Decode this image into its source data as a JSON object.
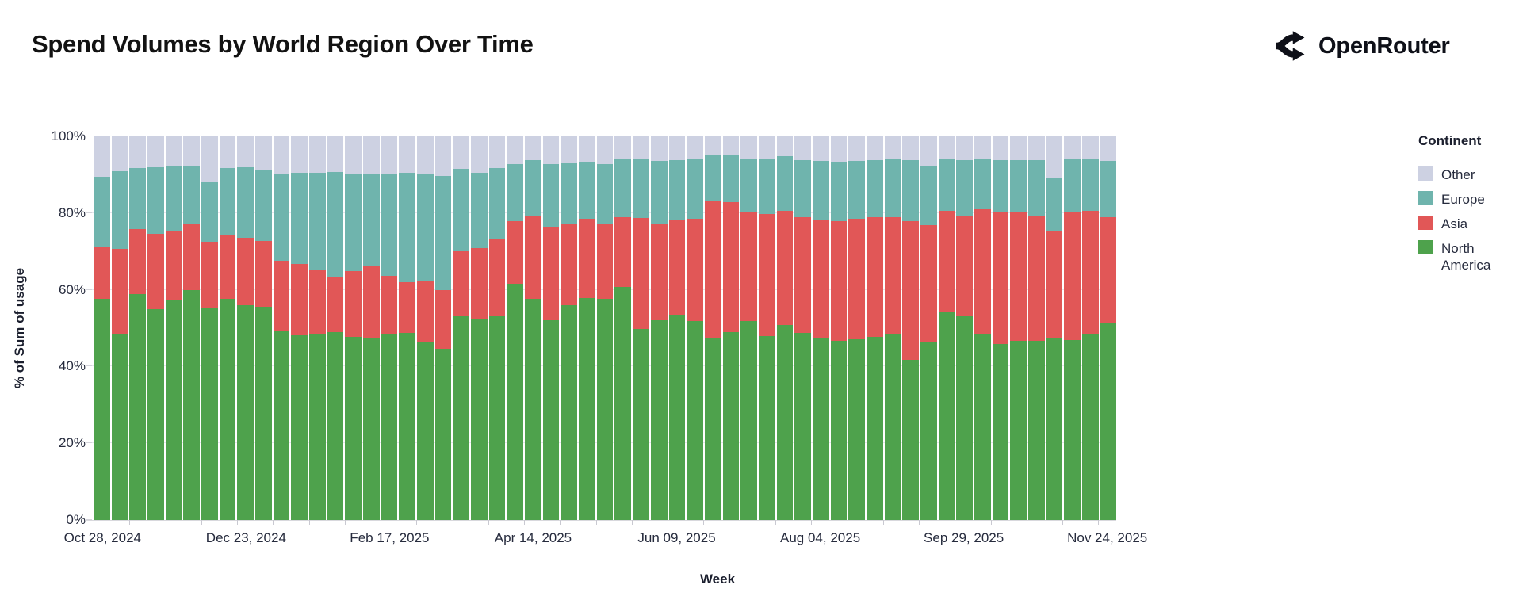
{
  "page": {
    "title": "Spend Volumes by World Region Over Time",
    "brand": "OpenRouter"
  },
  "chart_data": {
    "type": "bar",
    "stacked": true,
    "normalized_percent": true,
    "title": "Spend Volumes by World Region Over Time",
    "xlabel": "Week",
    "ylabel": "% of Sum of usage",
    "ylim": [
      0,
      100
    ],
    "grid": "horizontal",
    "bar_count": 57,
    "yticks": [
      {
        "label": "0%",
        "value": 0
      },
      {
        "label": "20%",
        "value": 20
      },
      {
        "label": "40%",
        "value": 40
      },
      {
        "label": "60%",
        "value": 60
      },
      {
        "label": "80%",
        "value": 80
      },
      {
        "label": "100%",
        "value": 100
      }
    ],
    "x_axis_labels": [
      "Oct 28, 2024",
      "Dec 23, 2024",
      "Feb 17, 2025",
      "Apr 14, 2025",
      "Jun 09, 2025",
      "Aug 04, 2025",
      "Sep 29, 2025",
      "Nov 24, 2025"
    ],
    "x_label_every_n_bars": 8,
    "x_minor_tick_every_n_bars": 2,
    "legend_title": "Continent",
    "legend_position": "right",
    "legend_order_top_to_bottom": [
      "Other",
      "Europe",
      "Asia",
      "North America"
    ],
    "series": [
      {
        "name": "North America",
        "color": "#4ea24c",
        "values": [
          57.7,
          48.3,
          58.8,
          55.0,
          57.4,
          59.9,
          55.2,
          57.6,
          55.9,
          55.6,
          49.4,
          48.2,
          48.6,
          48.9,
          47.8,
          47.4,
          48.3,
          48.8,
          46.4,
          44.7,
          53.2,
          52.5,
          53.2,
          61.5,
          57.7,
          52.0,
          56.0,
          57.8,
          57.7,
          60.8,
          49.7,
          52.0,
          53.5,
          51.8,
          47.4,
          49.0,
          51.8,
          47.9,
          50.9,
          48.7,
          47.5,
          46.8,
          47.2,
          47.8,
          48.6,
          41.7,
          46.3,
          54.1,
          53.2,
          48.3,
          45.9,
          46.7,
          46.8,
          47.5,
          47.0,
          48.5,
          51.2
        ]
      },
      {
        "name": "Asia",
        "color": "#e15757",
        "values": [
          13.3,
          22.3,
          17.0,
          19.6,
          17.8,
          17.3,
          17.4,
          16.8,
          17.6,
          17.1,
          18.1,
          18.6,
          16.6,
          14.6,
          17.0,
          19.0,
          15.4,
          13.1,
          15.9,
          15.2,
          16.9,
          18.4,
          20.0,
          16.3,
          21.5,
          24.4,
          21.1,
          20.7,
          19.3,
          18.2,
          29.0,
          25.0,
          24.6,
          26.7,
          35.6,
          33.8,
          28.3,
          31.8,
          29.7,
          30.2,
          30.8,
          31.1,
          31.3,
          31.1,
          30.4,
          36.1,
          30.5,
          26.5,
          26.2,
          32.7,
          34.2,
          33.4,
          32.4,
          27.9,
          33.1,
          32.0,
          27.8
        ]
      },
      {
        "name": "Europe",
        "color": "#6fb4ad",
        "values": [
          18.5,
          20.4,
          15.9,
          17.3,
          16.9,
          15.0,
          15.7,
          17.4,
          18.5,
          18.6,
          22.5,
          23.8,
          25.2,
          27.2,
          25.5,
          23.8,
          26.4,
          28.5,
          27.8,
          29.8,
          21.5,
          19.5,
          18.6,
          15.0,
          14.7,
          16.4,
          15.9,
          14.9,
          15.7,
          15.2,
          15.5,
          16.7,
          15.8,
          15.7,
          12.2,
          12.4,
          14.1,
          14.4,
          14.2,
          15.0,
          15.3,
          15.5,
          15.2,
          15.0,
          15.1,
          16.1,
          15.5,
          13.5,
          14.5,
          13.3,
          13.8,
          13.8,
          14.6,
          13.6,
          13.9,
          13.5,
          14.7
        ]
      },
      {
        "name": "Other",
        "color": "#cdd1e2",
        "values": [
          10.5,
          9.0,
          8.3,
          8.1,
          7.9,
          7.8,
          11.7,
          8.2,
          8.0,
          8.7,
          10.0,
          9.4,
          9.6,
          9.3,
          9.7,
          9.8,
          9.9,
          9.6,
          9.9,
          10.3,
          8.4,
          9.6,
          8.2,
          7.2,
          6.1,
          7.2,
          7.0,
          6.6,
          7.3,
          5.8,
          5.8,
          6.3,
          6.1,
          5.8,
          4.8,
          4.8,
          5.8,
          5.9,
          5.2,
          6.1,
          6.4,
          6.6,
          6.3,
          6.1,
          5.9,
          6.1,
          7.7,
          5.9,
          6.1,
          5.7,
          6.1,
          6.1,
          6.2,
          11.0,
          6.0,
          6.0,
          6.3
        ]
      }
    ]
  }
}
